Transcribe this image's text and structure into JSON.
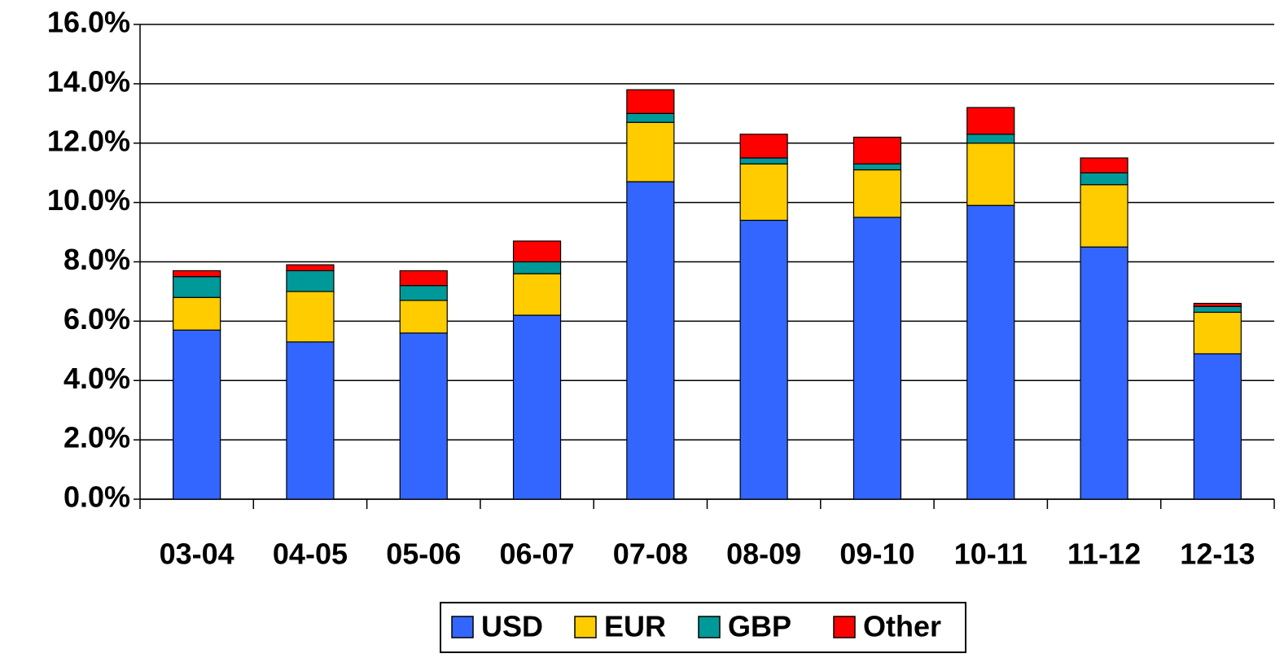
{
  "chart_data": {
    "type": "stacked_bar",
    "categories": [
      "03-04",
      "04-05",
      "05-06",
      "06-07",
      "07-08",
      "08-09",
      "09-10",
      "10-11",
      "11-12",
      "12-13"
    ],
    "series": [
      {
        "name": "USD",
        "color": "#3366ff",
        "values": [
          5.7,
          5.3,
          5.6,
          6.2,
          10.7,
          9.4,
          9.5,
          9.9,
          8.5,
          4.9
        ]
      },
      {
        "name": "EUR",
        "color": "#ffcc00",
        "values": [
          1.1,
          1.7,
          1.1,
          1.4,
          2.0,
          1.9,
          1.6,
          2.1,
          2.1,
          1.4
        ]
      },
      {
        "name": "GBP",
        "color": "#009999",
        "values": [
          0.7,
          0.7,
          0.5,
          0.4,
          0.3,
          0.2,
          0.2,
          0.3,
          0.4,
          0.2
        ]
      },
      {
        "name": "Other",
        "color": "#ff0000",
        "values": [
          0.2,
          0.2,
          0.5,
          0.7,
          0.8,
          0.8,
          0.9,
          0.9,
          0.5,
          0.1
        ]
      }
    ],
    "ylim": [
      0,
      16
    ],
    "yticks": [
      {
        "value": 0,
        "label": "0.0%"
      },
      {
        "value": 2,
        "label": "2.0%"
      },
      {
        "value": 4,
        "label": "4.0%"
      },
      {
        "value": 6,
        "label": "6.0%"
      },
      {
        "value": 8,
        "label": "8.0%"
      },
      {
        "value": 10,
        "label": "10.0%"
      },
      {
        "value": 12,
        "label": "12.0%"
      },
      {
        "value": 14,
        "label": "14.0%"
      },
      {
        "value": 16,
        "label": "16.0%"
      }
    ],
    "grid": true,
    "legend": "bottom"
  }
}
